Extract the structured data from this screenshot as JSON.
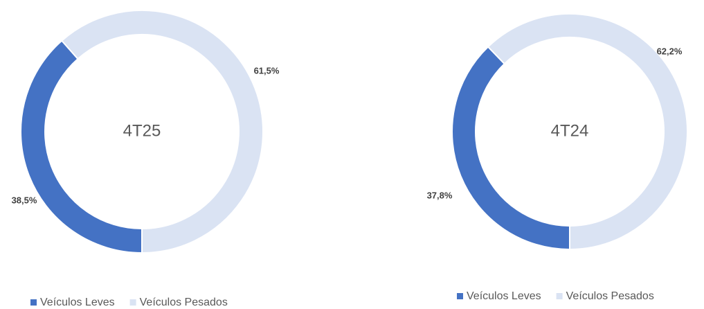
{
  "chart_data": [
    {
      "type": "pie",
      "donut": true,
      "center_label": "4T25",
      "categories": [
        "Veículos Leves",
        "Veículos Pesados"
      ],
      "values": [
        38.5,
        61.5
      ],
      "value_labels": [
        "38,5%",
        "61,5%"
      ],
      "colors": [
        "#4472c4",
        "#dae3f3"
      ],
      "legend": "bottom"
    },
    {
      "type": "pie",
      "donut": true,
      "center_label": "4T24",
      "categories": [
        "Veículos Leves",
        "Veículos Pesados"
      ],
      "values": [
        37.8,
        62.2
      ],
      "value_labels": [
        "37,8%",
        "62,2%"
      ],
      "colors": [
        "#4472c4",
        "#dae3f3"
      ],
      "legend": "bottom"
    }
  ]
}
